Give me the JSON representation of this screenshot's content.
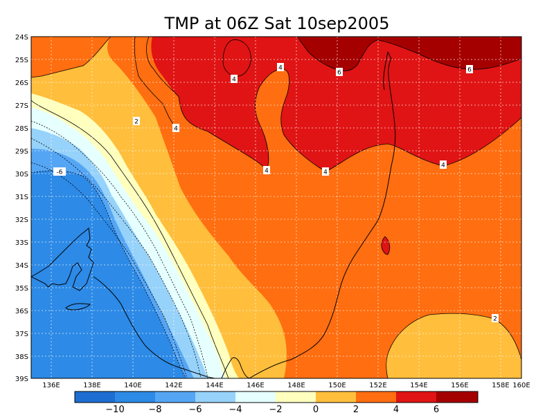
{
  "title": "TMP at 06Z Sat 10sep2005",
  "lat_labels": [
    "24S",
    "25S",
    "26S",
    "27S",
    "28S",
    "29S",
    "30S",
    "31S",
    "32S",
    "33S",
    "34S",
    "35S",
    "36S",
    "37S",
    "38S",
    "39S"
  ],
  "lon_labels": [
    "136E",
    "138E",
    "140E",
    "142E",
    "144E",
    "146E",
    "148E",
    "150E",
    "152E",
    "154E",
    "156E",
    "158E",
    "160E"
  ],
  "contour_labels": [
    "4",
    "4",
    "6",
    "6",
    "2",
    "4",
    "4",
    "4",
    "-6",
    "4",
    "2"
  ],
  "colorbar": {
    "ticks": [
      "−10",
      "−8",
      "−6",
      "−4",
      "−2",
      "0",
      "2",
      "4",
      "6"
    ],
    "colors": [
      "#1e6ed2",
      "#2d8ae6",
      "#55a5f5",
      "#96d2fa",
      "#e6ffff",
      "#ffffbe",
      "#ffbe3c",
      "#ff6e10",
      "#e01414",
      "#a50000"
    ]
  },
  "colors": {
    "c_gt6": "#a50000",
    "c_4_6": "#e01414",
    "c_2_4": "#ff6e10",
    "c_0_2": "#ffbe3c",
    "c_m2_0": "#ffffbe",
    "c_m4_m2": "#e6ffff",
    "c_m6_m4": "#96d2fa",
    "c_m8_m6": "#55a5f5",
    "c_lt_m8": "#2d8ae6"
  }
}
